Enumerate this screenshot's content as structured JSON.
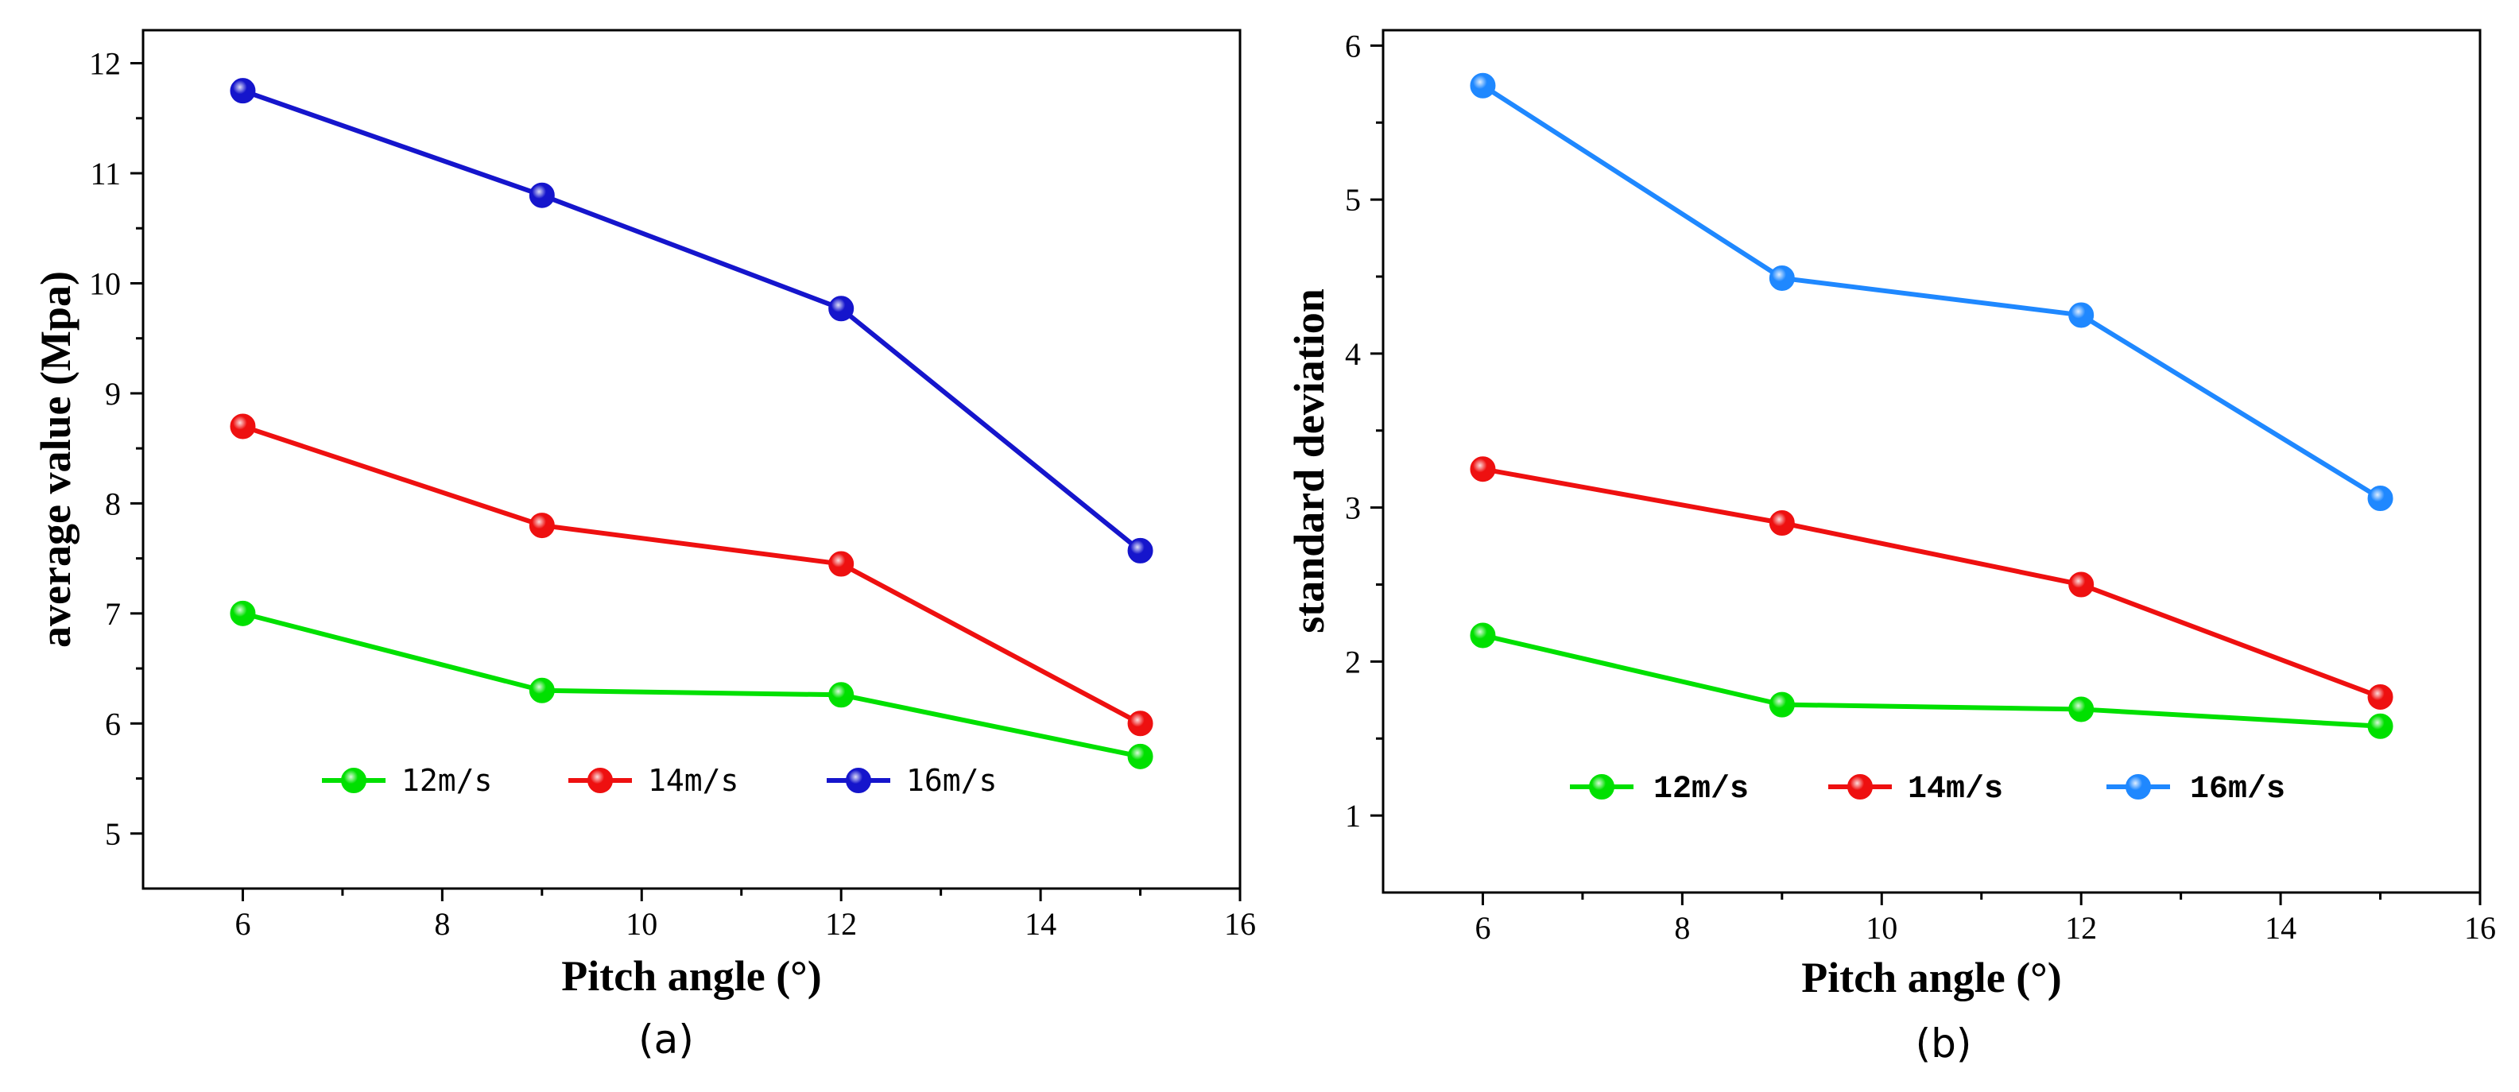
{
  "colors": {
    "green": "#00e000",
    "red": "#ee1010",
    "navy": "#1515cc",
    "sky": "#1f88ff"
  },
  "chart_data": [
    {
      "type": "line",
      "panel_label": "(a)",
      "xlabel": "Pitch angle (°)",
      "ylabel": "average value (Mpa)",
      "xlim": [
        5,
        16
      ],
      "ylim": [
        4.5,
        12.3
      ],
      "xticks": [
        6,
        8,
        10,
        12,
        14,
        16
      ],
      "yticks": [
        5,
        6,
        7,
        8,
        9,
        10,
        11,
        12
      ],
      "x": [
        6,
        9,
        12,
        15
      ],
      "legend_position": "bottom-center",
      "series": [
        {
          "name": "12m/s",
          "color": "#00e000",
          "values": [
            7.0,
            6.3,
            6.26,
            5.7
          ]
        },
        {
          "name": "14m/s",
          "color": "#ee1010",
          "values": [
            8.7,
            7.8,
            7.45,
            6.0
          ]
        },
        {
          "name": "16m/s",
          "color": "#1515cc",
          "values": [
            11.75,
            10.8,
            9.77,
            7.57
          ]
        }
      ]
    },
    {
      "type": "line",
      "panel_label": "(b)",
      "xlabel": "Pitch angle (°)",
      "ylabel": "standard deviation",
      "xlim": [
        5,
        16
      ],
      "ylim": [
        0.5,
        6.1
      ],
      "xticks": [
        6,
        8,
        10,
        12,
        14,
        16
      ],
      "yticks": [
        1,
        2,
        3,
        4,
        5,
        6
      ],
      "x": [
        6,
        9,
        12,
        15
      ],
      "legend_position": "bottom-center",
      "series": [
        {
          "name": "12m/s",
          "color": "#00e000",
          "values": [
            2.17,
            1.72,
            1.69,
            1.58
          ]
        },
        {
          "name": "14m/s",
          "color": "#ee1010",
          "values": [
            3.25,
            2.9,
            2.5,
            1.77
          ]
        },
        {
          "name": "16m/s",
          "color": "#1f88ff",
          "values": [
            5.74,
            4.49,
            4.25,
            3.06
          ]
        }
      ]
    }
  ]
}
